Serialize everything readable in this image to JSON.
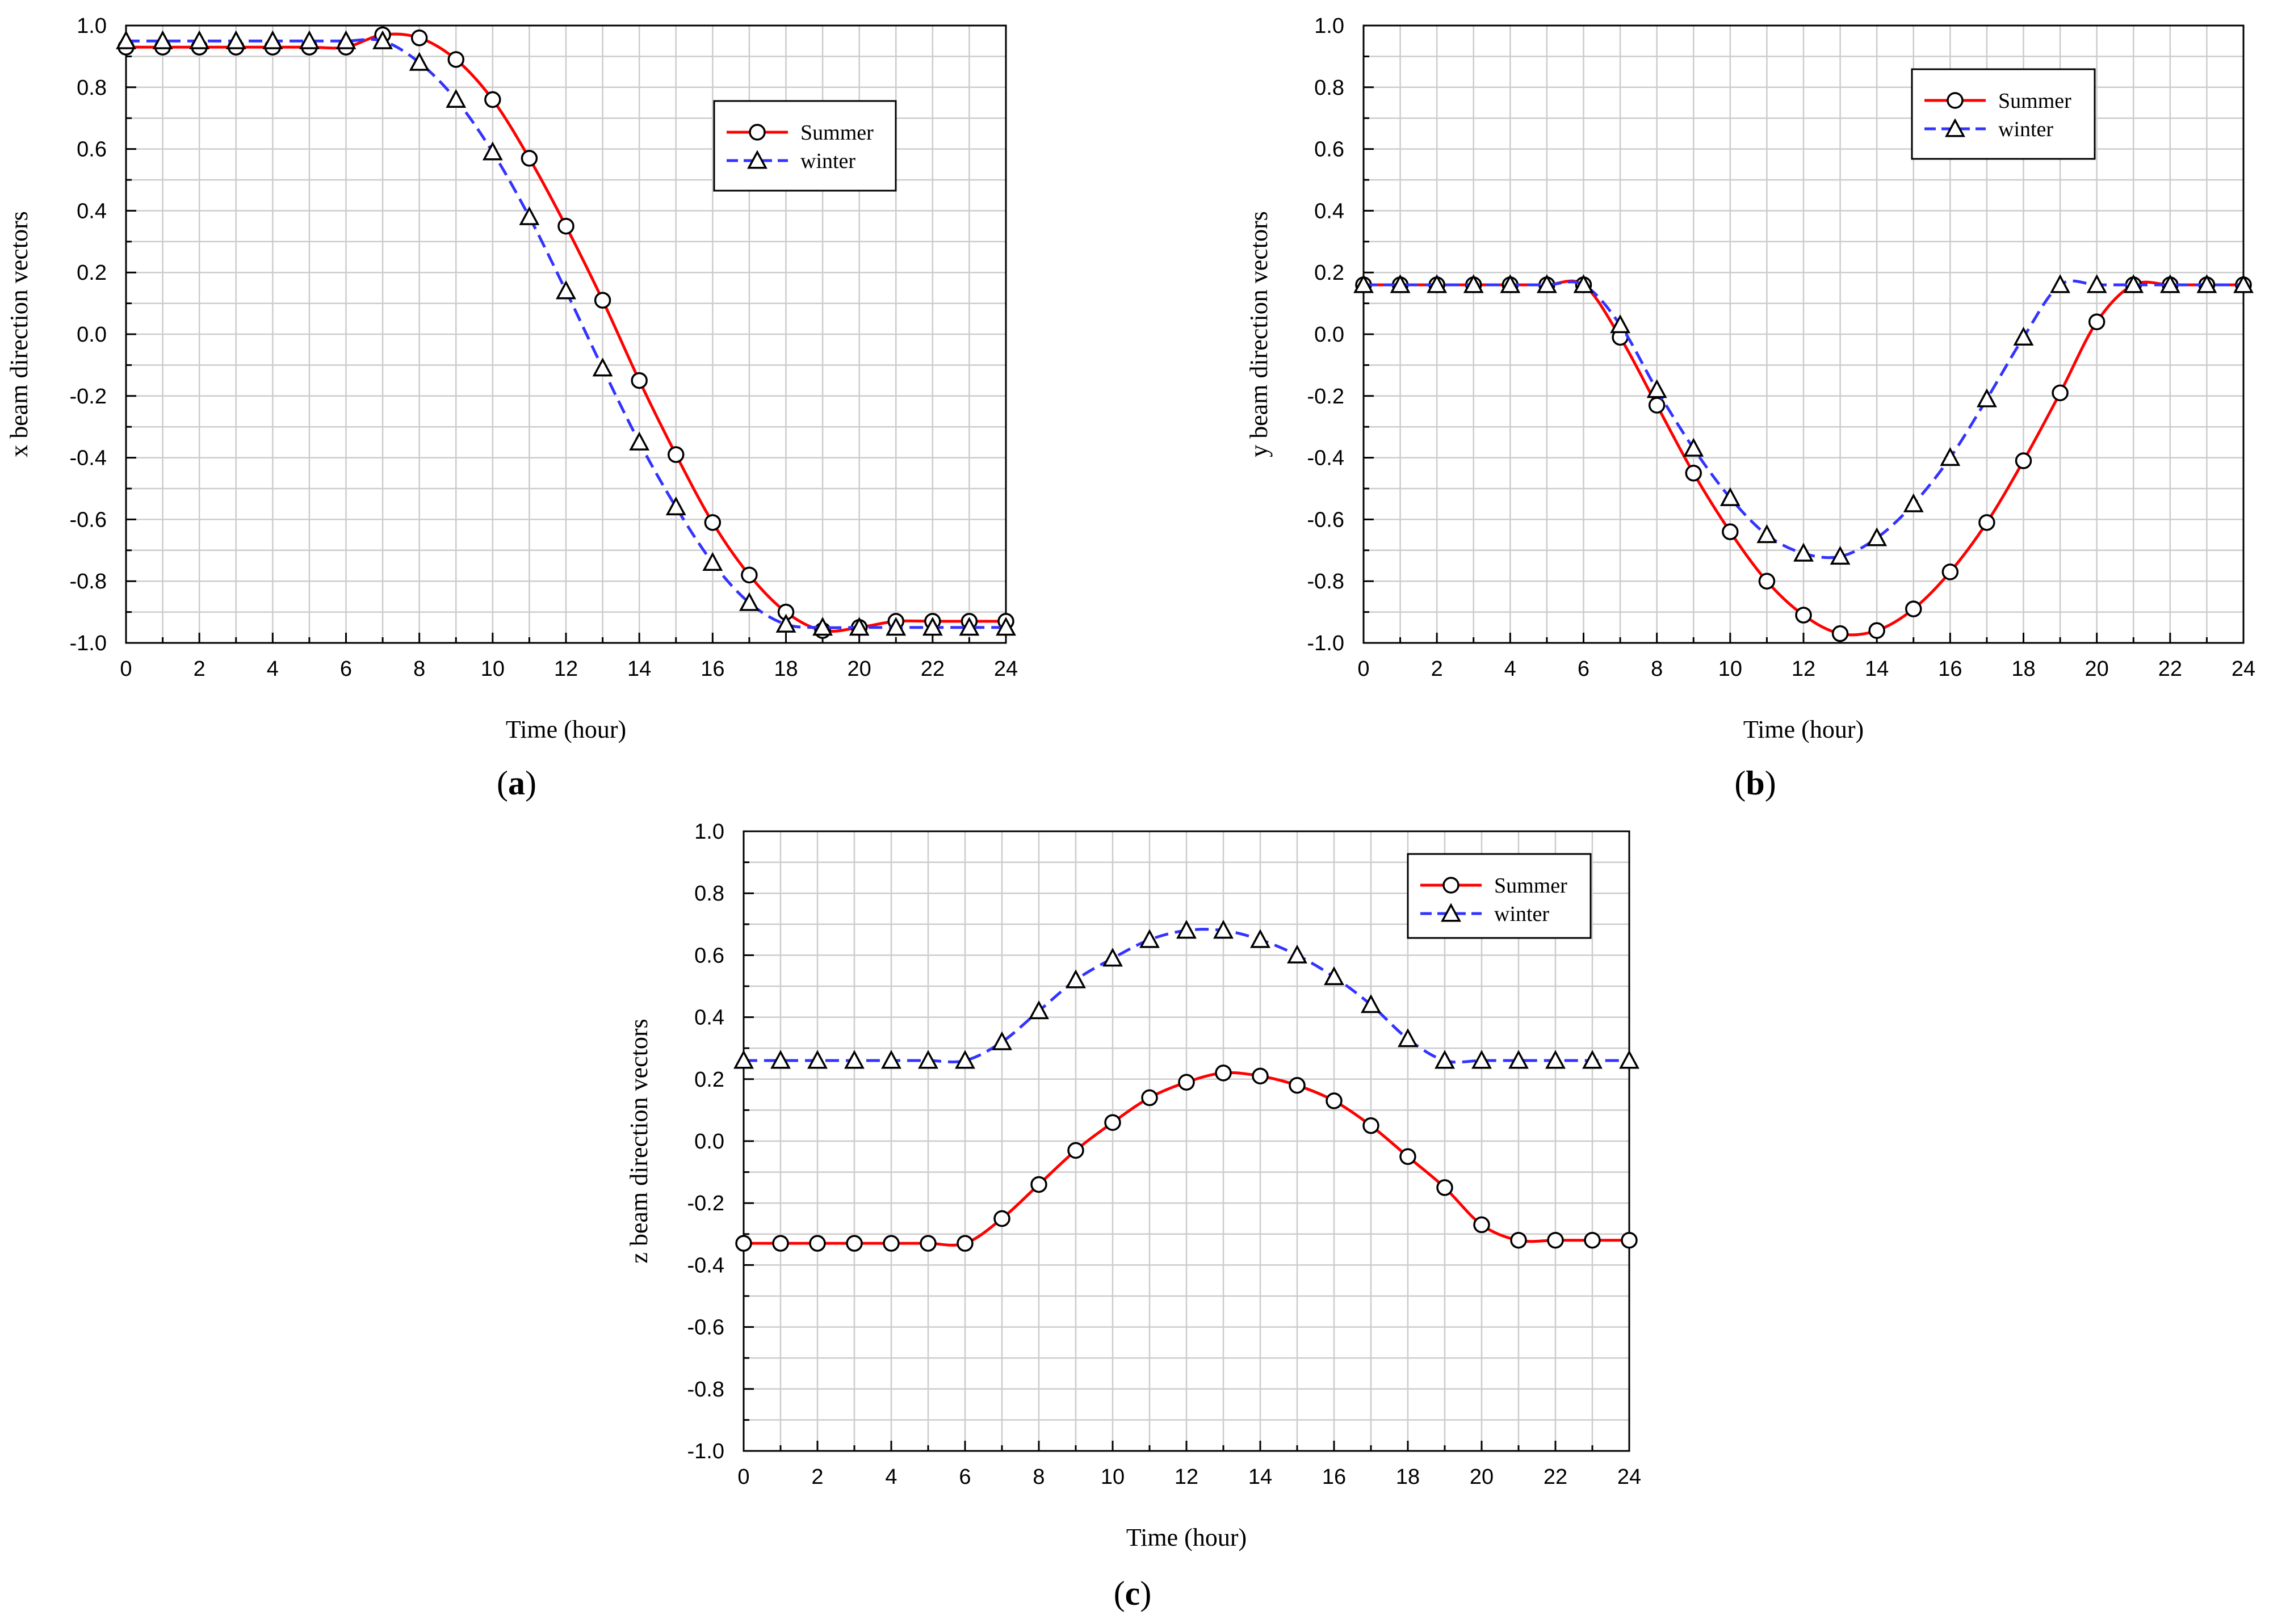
{
  "figure": {
    "captions": [
      "a",
      "b",
      "c"
    ]
  },
  "chart_data": [
    {
      "id": "a",
      "type": "line",
      "xlabel": "Time (hour)",
      "ylabel": "x beam direction vectors",
      "xlim": [
        0,
        24
      ],
      "ylim": [
        -1.0,
        1.0
      ],
      "xticks": [
        0,
        2,
        4,
        6,
        8,
        10,
        12,
        14,
        16,
        18,
        20,
        22,
        24
      ],
      "yticks": [
        -1.0,
        -0.8,
        -0.6,
        -0.4,
        -0.2,
        0.0,
        0.2,
        0.4,
        0.6,
        0.8,
        1.0
      ],
      "ytick_labels": [
        "-1.0",
        "-0.8",
        "-0.6",
        "-0.4",
        "-0.2",
        "0.0",
        "0.2",
        "0.4",
        "0.6",
        "0.8",
        "1.0"
      ],
      "grid": true,
      "legend_position": "top-right",
      "x": [
        0,
        1,
        2,
        3,
        4,
        5,
        6,
        7,
        8,
        9,
        10,
        11,
        12,
        13,
        14,
        15,
        16,
        17,
        18,
        19,
        20,
        21,
        22,
        23,
        24
      ],
      "series": [
        {
          "name": "Summer",
          "color": "#ff0000",
          "dash": "solid",
          "marker": "circle",
          "values": [
            0.93,
            0.93,
            0.93,
            0.93,
            0.93,
            0.93,
            0.93,
            0.97,
            0.96,
            0.89,
            0.76,
            0.57,
            0.35,
            0.11,
            -0.15,
            -0.39,
            -0.61,
            -0.78,
            -0.9,
            -0.96,
            -0.95,
            -0.93,
            -0.93,
            -0.93,
            -0.93
          ]
        },
        {
          "name": "winter",
          "color": "#3333ff",
          "dash": "dashed",
          "marker": "triangle",
          "values": [
            0.95,
            0.95,
            0.95,
            0.95,
            0.95,
            0.95,
            0.95,
            0.95,
            0.88,
            0.76,
            0.59,
            0.38,
            0.14,
            -0.11,
            -0.35,
            -0.56,
            -0.74,
            -0.87,
            -0.94,
            -0.95,
            -0.95,
            -0.95,
            -0.95,
            -0.95,
            -0.95
          ]
        }
      ]
    },
    {
      "id": "b",
      "type": "line",
      "xlabel": "Time (hour)",
      "ylabel": "y beam direction vectors",
      "xlim": [
        0,
        24
      ],
      "ylim": [
        -1.0,
        1.0
      ],
      "xticks": [
        0,
        2,
        4,
        6,
        8,
        10,
        12,
        14,
        16,
        18,
        20,
        22,
        24
      ],
      "yticks": [
        -1.0,
        -0.8,
        -0.6,
        -0.4,
        -0.2,
        0.0,
        0.2,
        0.4,
        0.6,
        0.8,
        1.0
      ],
      "ytick_labels": [
        "-1.0",
        "-0.8",
        "-0.6",
        "-0.4",
        "-0.2",
        "0.0",
        "0.2",
        "0.4",
        "0.6",
        "0.8",
        "1.0"
      ],
      "grid": true,
      "legend_position": "top-right",
      "x": [
        0,
        1,
        2,
        3,
        4,
        5,
        6,
        7,
        8,
        9,
        10,
        11,
        12,
        13,
        14,
        15,
        16,
        17,
        18,
        19,
        20,
        21,
        22,
        23,
        24
      ],
      "series": [
        {
          "name": "Summer",
          "color": "#ff0000",
          "dash": "solid",
          "marker": "circle",
          "values": [
            0.16,
            0.16,
            0.16,
            0.16,
            0.16,
            0.16,
            0.16,
            -0.01,
            -0.23,
            -0.45,
            -0.64,
            -0.8,
            -0.91,
            -0.97,
            -0.96,
            -0.89,
            -0.77,
            -0.61,
            -0.41,
            -0.19,
            0.04,
            0.16,
            0.16,
            0.16,
            0.16
          ]
        },
        {
          "name": "winter",
          "color": "#3333ff",
          "dash": "dashed",
          "marker": "triangle",
          "values": [
            0.16,
            0.16,
            0.16,
            0.16,
            0.16,
            0.16,
            0.16,
            0.03,
            -0.18,
            -0.37,
            -0.53,
            -0.65,
            -0.71,
            -0.72,
            -0.66,
            -0.55,
            -0.4,
            -0.21,
            -0.01,
            0.16,
            0.16,
            0.16,
            0.16,
            0.16,
            0.16
          ]
        }
      ]
    },
    {
      "id": "c",
      "type": "line",
      "xlabel": "Time (hour)",
      "ylabel": "z beam direction vectors",
      "xlim": [
        0,
        24
      ],
      "ylim": [
        -1.0,
        1.0
      ],
      "xticks": [
        0,
        2,
        4,
        6,
        8,
        10,
        12,
        14,
        16,
        18,
        20,
        22,
        24
      ],
      "yticks": [
        -1.0,
        -0.8,
        -0.6,
        -0.4,
        -0.2,
        0.0,
        0.2,
        0.4,
        0.6,
        0.8,
        1.0
      ],
      "ytick_labels": [
        "-1.0",
        "-0.8",
        "-0.6",
        "-0.4",
        "-0.2",
        "0.0",
        "0.2",
        "0.4",
        "0.6",
        "0.8",
        "1.0"
      ],
      "grid": true,
      "legend_position": "top-right",
      "x": [
        0,
        1,
        2,
        3,
        4,
        5,
        6,
        7,
        8,
        9,
        10,
        11,
        12,
        13,
        14,
        15,
        16,
        17,
        18,
        19,
        20,
        21,
        22,
        23,
        24
      ],
      "series": [
        {
          "name": "Summer",
          "color": "#ff0000",
          "dash": "solid",
          "marker": "circle",
          "values": [
            -0.33,
            -0.33,
            -0.33,
            -0.33,
            -0.33,
            -0.33,
            -0.33,
            -0.25,
            -0.14,
            -0.03,
            0.06,
            0.14,
            0.19,
            0.22,
            0.21,
            0.18,
            0.13,
            0.05,
            -0.05,
            -0.15,
            -0.27,
            -0.32,
            -0.32,
            -0.32,
            -0.32
          ]
        },
        {
          "name": "winter",
          "color": "#3333ff",
          "dash": "dashed",
          "marker": "triangle",
          "values": [
            0.26,
            0.26,
            0.26,
            0.26,
            0.26,
            0.26,
            0.26,
            0.32,
            0.42,
            0.52,
            0.59,
            0.65,
            0.68,
            0.68,
            0.65,
            0.6,
            0.53,
            0.44,
            0.33,
            0.26,
            0.26,
            0.26,
            0.26,
            0.26,
            0.26
          ]
        }
      ]
    }
  ]
}
